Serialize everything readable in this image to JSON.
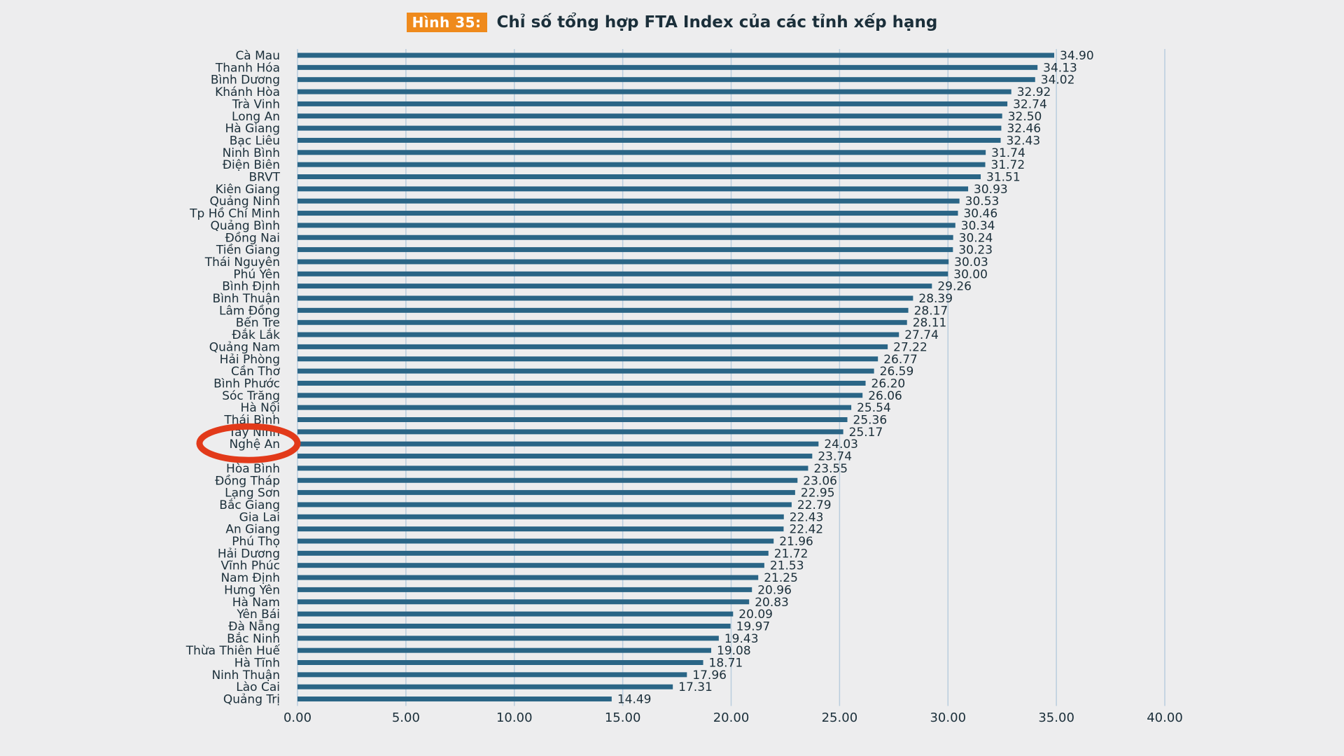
{
  "figure": {
    "badge": "Hình 35:"
  },
  "colors": {
    "bar": "#2a6586",
    "grid": "#b9cddd",
    "badge": "#ef8a1c",
    "highlight": "#e23a1a",
    "text": "#1b2f3a"
  },
  "chart_data": {
    "type": "bar",
    "orientation": "horizontal",
    "title": "Chỉ số tổng hợp FTA Index của các tỉnh xếp hạng",
    "xlim": [
      0,
      40
    ],
    "xticks": [
      "0.00",
      "5.00",
      "10.00",
      "15.00",
      "20.00",
      "25.00",
      "30.00",
      "35.00",
      "40.00"
    ],
    "grid": true,
    "highlight": "Nghệ An",
    "categories": [
      "Cà Mau",
      "Thanh Hóa",
      "Bình Dương",
      "Khánh Hòa",
      "Trà Vinh",
      "Long An",
      "Hà Giang",
      "Bạc Liêu",
      "Ninh Bình",
      "Điện Biên",
      "BRVT",
      "Kiên Giang",
      "Quảng Ninh",
      "Tp Hồ Chí Minh",
      "Quảng Bình",
      "Đồng Nai",
      "Tiền Giang",
      "Thái Nguyên",
      "Phú Yên",
      "Bình Định",
      "Bình Thuận",
      "Lâm Đồng",
      "Bến Tre",
      "Đắk Lắk",
      "Quảng Nam",
      "Hải Phòng",
      "Cần Thơ",
      "Bình Phước",
      "Sóc Trăng",
      "Hà Nội",
      "Thái Bình",
      "Tây Ninh",
      "Nghệ An",
      "",
      "Hòa Bình",
      "Đồng Tháp",
      "Lạng Sơn",
      "Bắc Giang",
      "Gia Lai",
      "An Giang",
      "Phú Thọ",
      "Hải Dương",
      "Vĩnh Phúc",
      "Nam Định",
      "Hưng Yên",
      "Hà Nam",
      "Yên Bái",
      "Đà Nẵng",
      "Bắc Ninh",
      "Thừa Thiên Huế",
      "Hà Tĩnh",
      "Ninh Thuận",
      "Lào Cai",
      "Quảng Trị"
    ],
    "values": [
      34.9,
      34.13,
      34.02,
      32.92,
      32.74,
      32.5,
      32.46,
      32.43,
      31.74,
      31.72,
      31.51,
      30.93,
      30.53,
      30.46,
      30.34,
      30.24,
      30.23,
      30.03,
      30.0,
      29.26,
      28.39,
      28.17,
      28.11,
      27.74,
      27.22,
      26.77,
      26.59,
      26.2,
      26.06,
      25.54,
      25.36,
      25.17,
      24.03,
      23.74,
      23.55,
      23.06,
      22.95,
      22.79,
      22.43,
      22.42,
      21.96,
      21.72,
      21.53,
      21.25,
      20.96,
      20.83,
      20.09,
      19.97,
      19.43,
      19.08,
      18.71,
      17.96,
      17.31,
      14.49
    ],
    "value_labels": [
      "34.90",
      "34.13",
      "34.02",
      "32.92",
      "32.74",
      "32.50",
      "32.46",
      "32.43",
      "31.74",
      "31.72",
      "31.51",
      "30.93",
      "30.53",
      "30.46",
      "30.34",
      "30.24",
      "30.23",
      "30.03",
      "30.00",
      "29.26",
      "28.39",
      "28.17",
      "28.11",
      "27.74",
      "27.22",
      "26.77",
      "26.59",
      "26.20",
      "26.06",
      "25.54",
      "25.36",
      "25.17",
      "24.03",
      "23.74",
      "23.55",
      "23.06",
      "22.95",
      "22.79",
      "22.43",
      "22.42",
      "21.96",
      "21.72",
      "21.53",
      "21.25",
      "20.96",
      "20.83",
      "20.09",
      "19.97",
      "19.43",
      "19.08",
      "18.71",
      "17.96",
      "17.31",
      "14.49"
    ]
  }
}
